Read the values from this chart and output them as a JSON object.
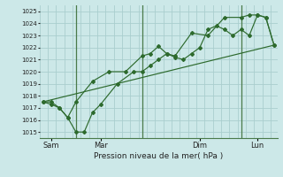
{
  "xlabel": "Pression niveau de la mer( hPa )",
  "bg_color": "#cce8e8",
  "grid_color": "#aacece",
  "line_color": "#2d6a2d",
  "vline_color": "#4a7a4a",
  "ylim": [
    1014.5,
    1025.5
  ],
  "xlim": [
    -0.2,
    14.2
  ],
  "yticks": [
    1015,
    1016,
    1017,
    1018,
    1019,
    1020,
    1021,
    1022,
    1023,
    1024,
    1025
  ],
  "day_positions": [
    0.5,
    3.5,
    9.5,
    13.0
  ],
  "day_labels": [
    "Sam",
    "Mar",
    "Dim",
    "Lun"
  ],
  "vlines": [
    2.0,
    6.0,
    12.0
  ],
  "line1_x": [
    0.0,
    0.5,
    1.0,
    1.5,
    2.0,
    2.5,
    3.0,
    3.5,
    4.5,
    5.5,
    6.0,
    6.5,
    7.0,
    7.5,
    8.0,
    8.5,
    9.0,
    9.5,
    10.0,
    10.5,
    11.0,
    11.5,
    12.0,
    12.5,
    13.0,
    13.5,
    14.0
  ],
  "line1_y": [
    1017.5,
    1017.5,
    1017.0,
    1016.2,
    1015.0,
    1015.0,
    1016.6,
    1017.3,
    1019.0,
    1020.0,
    1020.0,
    1020.5,
    1021.0,
    1021.5,
    1021.2,
    1021.0,
    1021.5,
    1022.0,
    1023.5,
    1023.8,
    1023.5,
    1023.0,
    1023.5,
    1023.0,
    1024.7,
    1024.5,
    1022.2
  ],
  "line2_x": [
    0.0,
    0.5,
    1.0,
    1.5,
    2.0,
    3.0,
    4.0,
    5.0,
    6.0,
    6.5,
    7.0,
    7.5,
    8.0,
    9.0,
    10.0,
    11.0,
    12.0,
    12.5,
    13.0,
    13.5,
    14.0
  ],
  "line2_y": [
    1017.5,
    1017.3,
    1017.0,
    1016.2,
    1017.5,
    1019.2,
    1020.0,
    1020.0,
    1021.3,
    1021.5,
    1022.1,
    1021.5,
    1021.3,
    1023.2,
    1023.0,
    1024.5,
    1024.5,
    1024.7,
    1024.7,
    1024.5,
    1022.2
  ],
  "line3_x": [
    0.0,
    14.0
  ],
  "line3_y": [
    1017.5,
    1022.2
  ],
  "ytick_fontsize": 5.0,
  "xtick_fontsize": 6.0,
  "xlabel_fontsize": 6.5
}
